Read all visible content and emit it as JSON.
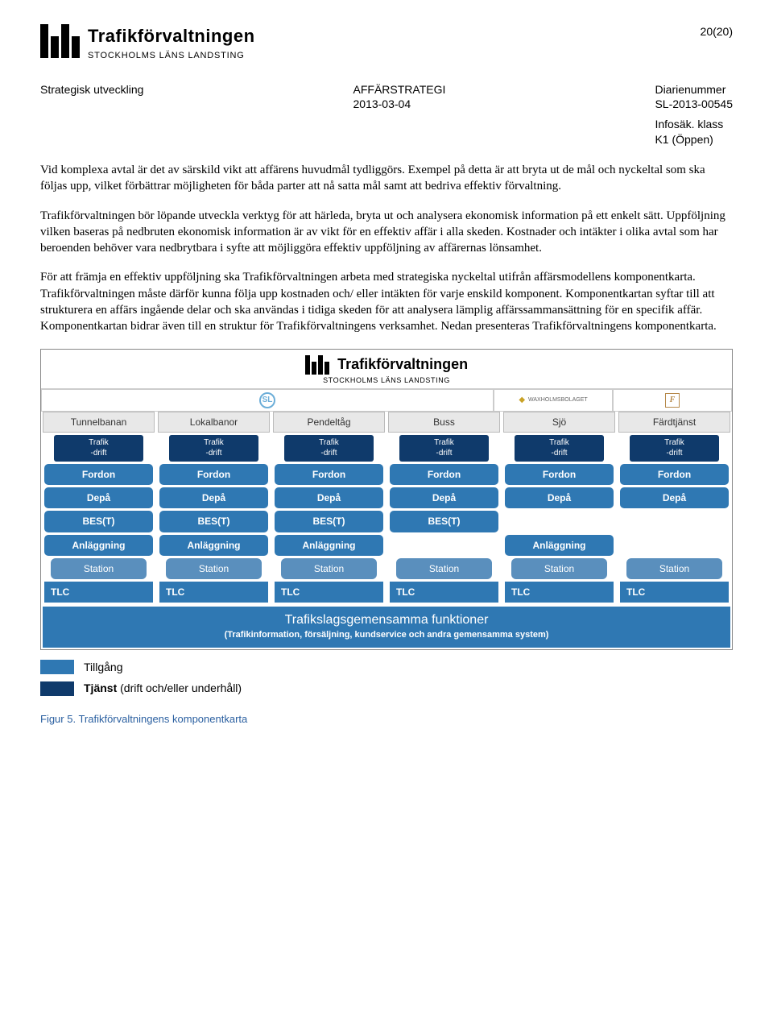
{
  "page_number": "20(20)",
  "org_name": "Trafikförvaltningen",
  "org_sub": "STOCKHOLMS LÄNS LANDSTING",
  "meta": {
    "left": "Strategisk utveckling",
    "center_title": "AFFÄRSTRATEGI",
    "center_date": "2013-03-04",
    "right_label": "Diarienummer",
    "right_value": "SL-2013-00545",
    "infosak_label": "Infosäk. klass",
    "infosak_value": "K1 (Öppen)"
  },
  "paragraphs": [
    "Vid komplexa avtal är det av särskild vikt att affärens huvudmål tydliggörs. Exempel på detta är att bryta ut de mål och nyckeltal som ska följas upp, vilket förbättrar möjligheten för båda parter att nå satta mål samt att bedriva effektiv förvaltning.",
    "Trafikförvaltningen bör löpande utveckla verktyg för att härleda, bryta ut och analysera ekonomisk information på ett enkelt sätt. Uppföljning vilken baseras på nedbruten ekonomisk information är av vikt för en effektiv affär i alla skeden. Kostnader och intäkter i olika avtal som har beroenden behöver vara nedbrytbara i syfte att möjliggöra effektiv uppföljning av affärernas lönsamhet.",
    "För att främja en effektiv uppföljning ska Trafikförvaltningen arbeta med strategiska nyckeltal utifrån affärsmodellens komponentkarta. Trafikförvaltningen måste därför kunna följa upp kostnaden och/ eller intäkten för varje enskild komponent. Komponentkartan syftar till att strukturera en affärs ingående delar och ska användas i tidiga skeden för att analysera lämplig affärssammansättning för en specifik affär. Komponentkartan bidrar även till en struktur för Trafikförvaltningens verksamhet. Nedan presenteras Trafikförvaltningens komponentkarta."
  ],
  "diagram": {
    "header_t1": "Trafikförvaltningen",
    "header_t2": "STOCKHOLMS LÄNS LANDSTING",
    "brands": {
      "sl": "SL",
      "wax": "WAXHOLMSBOLAGET",
      "ft": "F"
    },
    "columns": [
      "Tunnelbanan",
      "Lokalbanor",
      "Pendeltåg",
      "Buss",
      "Sjö",
      "Färdtjänst"
    ],
    "rows": {
      "trafik": "Trafik\n-drift",
      "fordon": "Fordon",
      "depa": "Depå",
      "best": "BES(T)",
      "anlaggning": "Anläggning",
      "station": "Station",
      "tlc": "TLC"
    },
    "row_presence": {
      "trafik": [
        true,
        true,
        true,
        true,
        true,
        true
      ],
      "fordon": [
        true,
        true,
        true,
        true,
        true,
        true
      ],
      "depa": [
        true,
        true,
        true,
        true,
        true,
        true
      ],
      "best": [
        true,
        true,
        true,
        true,
        false,
        false
      ],
      "anlaggning": [
        true,
        true,
        true,
        false,
        true,
        false
      ],
      "station": [
        true,
        true,
        true,
        true,
        true,
        true
      ],
      "tlc": [
        true,
        true,
        true,
        true,
        true,
        true
      ]
    },
    "shared_line1": "Trafikslagsgemensamma funktioner",
    "shared_line2": "(Trafikinformation, försäljning, kundservice och andra gemensamma system)",
    "colors": {
      "trafik_bg": "#0f3a6b",
      "chip_bg": "#2f78b3",
      "tlc_bg": "#2f78b3",
      "station_bg": "#5a8fbd",
      "shared_bg": "#2f78b3",
      "legend_tillgang": "#2f78b3",
      "legend_tjanst": "#0f3a6b"
    }
  },
  "legend": {
    "tillgang": "Tillgång",
    "tjanst_bold": "Tjänst",
    "tjanst_rest": " (drift och/eller underhåll)"
  },
  "caption": "Figur 5. Trafikförvaltningens komponentkarta"
}
